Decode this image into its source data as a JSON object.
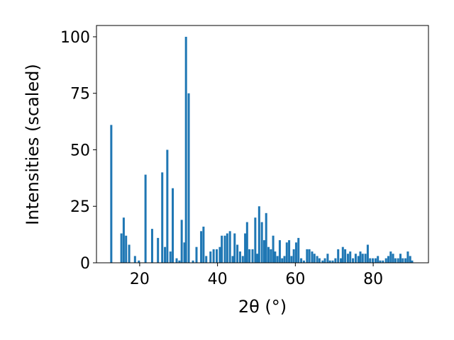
{
  "chart_data": {
    "type": "bar",
    "xlabel": "2θ (°)",
    "ylabel": "Intensities (scaled)",
    "color": "#1f77b4",
    "width": 0.55,
    "x": [
      12.7,
      15.3,
      15.9,
      16.5,
      17.3,
      18.8,
      19.8,
      21.5,
      23.2,
      24.7,
      25.8,
      26.5,
      27.1,
      27.9,
      28.5,
      29.5,
      30.2,
      30.8,
      31.5,
      31.9,
      32.6,
      33.7,
      34.6,
      35.8,
      36.4,
      37.1,
      38.2,
      39.0,
      39.8,
      40.6,
      41.1,
      41.9,
      42.5,
      43.2,
      43.9,
      44.4,
      45.1,
      45.8,
      46.5,
      47.1,
      47.6,
      48.2,
      49.0,
      49.7,
      50.2,
      50.7,
      51.4,
      52.0,
      52.5,
      53.1,
      53.7,
      54.3,
      54.8,
      55.4,
      56.0,
      56.6,
      57.2,
      57.8,
      58.4,
      59.0,
      59.6,
      60.2,
      60.8,
      61.5,
      62.2,
      63.0,
      63.6,
      64.3,
      64.9,
      65.6,
      66.2,
      67.0,
      67.6,
      68.3,
      68.9,
      69.6,
      70.3,
      71.0,
      71.7,
      72.2,
      72.8,
      73.5,
      74.1,
      74.8,
      75.5,
      76.2,
      76.7,
      77.3,
      78.0,
      78.6,
      79.2,
      79.9,
      80.6,
      81.2,
      81.8,
      82.5,
      83.3,
      83.9,
      84.5,
      85.1,
      85.7,
      86.4,
      87.0,
      87.6,
      88.3,
      88.9,
      89.5,
      90.0
    ],
    "values": [
      61,
      13,
      20,
      12,
      8,
      3,
      1,
      39,
      15,
      11,
      40,
      7,
      50,
      5,
      33,
      2,
      1,
      19,
      9,
      100,
      75,
      1,
      7,
      14,
      16,
      3,
      5,
      6,
      6,
      7,
      12,
      12,
      13,
      14,
      3,
      13,
      8,
      5,
      3,
      13,
      18,
      6,
      6,
      20,
      4,
      25,
      18,
      10,
      22,
      7,
      6,
      12,
      5,
      3,
      10,
      2,
      3,
      9,
      10,
      3,
      6,
      9,
      11,
      2,
      1,
      6,
      6,
      5,
      4,
      3,
      2,
      1,
      2,
      4,
      1,
      1,
      2,
      6,
      2,
      7,
      6,
      4,
      5,
      2,
      4,
      3,
      5,
      4,
      4,
      8,
      2,
      2,
      2,
      3,
      1,
      1,
      2,
      3,
      5,
      4,
      2,
      2,
      4,
      2,
      2,
      5,
      3,
      1
    ],
    "xlim": [
      8.9,
      94.2
    ],
    "xticks": [
      20,
      40,
      60,
      80
    ],
    "ylim": [
      0,
      105
    ],
    "yticks": [
      0,
      25,
      50,
      75,
      100
    ]
  }
}
